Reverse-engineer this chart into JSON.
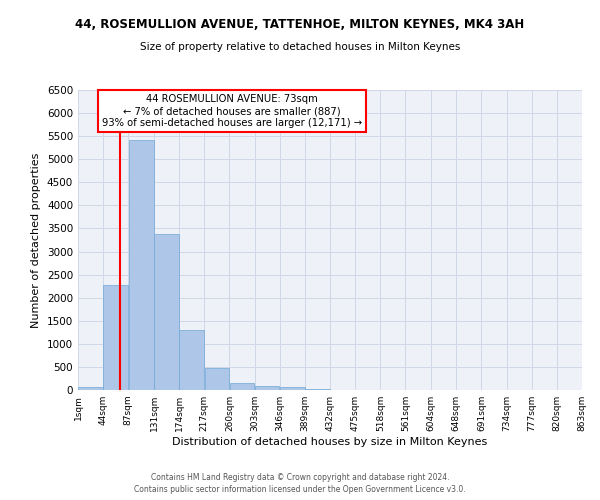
{
  "title1": "44, ROSEMULLION AVENUE, TATTENHOE, MILTON KEYNES, MK4 3AH",
  "title2": "Size of property relative to detached houses in Milton Keynes",
  "xlabel": "Distribution of detached houses by size in Milton Keynes",
  "ylabel": "Number of detached properties",
  "footer1": "Contains HM Land Registry data © Crown copyright and database right 2024.",
  "footer2": "Contains public sector information licensed under the Open Government Licence v3.0.",
  "annotation_title": "44 ROSEMULLION AVENUE: 73sqm",
  "annotation_line1": "← 7% of detached houses are smaller (887)",
  "annotation_line2": "93% of semi-detached houses are larger (12,171) →",
  "property_size": 73,
  "bar_color": "#aec6e8",
  "bar_edge_color": "#6fa8d5",
  "vline_color": "red",
  "annotation_box_color": "white",
  "annotation_box_edge": "red",
  "grid_color": "#d0d8e8",
  "background_color": "#eef2f8",
  "bins": [
    1,
    44,
    87,
    131,
    174,
    217,
    260,
    303,
    346,
    389,
    432,
    475,
    518,
    561,
    604,
    648,
    691,
    734,
    777,
    820,
    863
  ],
  "counts": [
    70,
    2270,
    5420,
    3380,
    1310,
    480,
    160,
    80,
    60,
    30,
    10,
    5,
    5,
    0,
    0,
    0,
    0,
    0,
    0,
    0
  ],
  "ylim": [
    0,
    6500
  ],
  "yticks": [
    0,
    500,
    1000,
    1500,
    2000,
    2500,
    3000,
    3500,
    4000,
    4500,
    5000,
    5500,
    6000,
    6500
  ],
  "bin_labels": [
    "1sqm",
    "44sqm",
    "87sqm",
    "131sqm",
    "174sqm",
    "217sqm",
    "260sqm",
    "303sqm",
    "346sqm",
    "389sqm",
    "432sqm",
    "475sqm",
    "518sqm",
    "561sqm",
    "604sqm",
    "648sqm",
    "691sqm",
    "734sqm",
    "777sqm",
    "820sqm",
    "863sqm"
  ]
}
